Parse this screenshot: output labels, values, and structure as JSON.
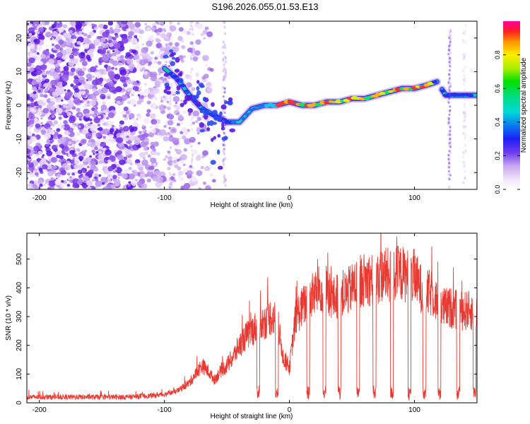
{
  "title": "S196.2026.055.01.53.E13",
  "colors": {
    "snr_line": "#e83a32",
    "axis": "#000000",
    "background": "#ffffff"
  },
  "chart_data": [
    {
      "type": "heatmap",
      "name": "spectrogram",
      "xlabel": "Height of straight line (km)",
      "ylabel": "Frequency (Hz)",
      "xlim": [
        -210,
        150
      ],
      "ylim": [
        -25,
        25
      ],
      "xticks": [
        -200,
        -100,
        0,
        100
      ],
      "xtick_labels": [
        "-200",
        "-100",
        "0",
        "100"
      ],
      "yticks": [
        -20,
        -10,
        0,
        10,
        20
      ],
      "ytick_labels": [
        "-20",
        "-10",
        "0",
        "10",
        "20"
      ],
      "ridge": {
        "x": [
          -100,
          -90,
          -80,
          -70,
          -60,
          -50,
          -40,
          -30,
          -20,
          -10,
          0,
          10,
          20,
          30,
          40,
          50,
          60,
          70,
          80,
          90,
          100,
          110,
          118,
          125,
          130,
          140,
          150
        ],
        "freq": [
          11,
          8,
          3,
          -1,
          -3,
          -5,
          -5,
          -1,
          0,
          0,
          1,
          0,
          0,
          1,
          1,
          2,
          2,
          3,
          4,
          5,
          5,
          6,
          7,
          3,
          3,
          3,
          3
        ]
      },
      "colorbar": {
        "label": "Normalized spectral amplitude",
        "range": [
          0.0,
          1.0
        ],
        "ticks": [
          0.0,
          0.2,
          0.4,
          0.6,
          0.8
        ],
        "tick_labels": [
          "0.0",
          "0.2",
          "0.4",
          "0.6",
          "0.8"
        ]
      }
    },
    {
      "type": "line",
      "name": "snr",
      "xlabel": "Height of straight line (km)",
      "ylabel": "SNR (10 * v/v)",
      "xlim": [
        -210,
        150
      ],
      "ylim": [
        0,
        590
      ],
      "xticks": [
        -200,
        -100,
        0,
        100
      ],
      "xtick_labels": [
        "-200",
        "-100",
        "0",
        "100"
      ],
      "yticks": [
        0,
        100,
        200,
        300,
        400,
        500
      ],
      "ytick_labels": [
        "0",
        "100",
        "200",
        "300",
        "400",
        "500"
      ],
      "series": [
        {
          "name": "SNR",
          "x": [
            -210,
            -190,
            -170,
            -150,
            -130,
            -110,
            -100,
            -90,
            -80,
            -75,
            -70,
            -65,
            -60,
            -55,
            -50,
            -45,
            -40,
            -35,
            -30,
            -25,
            -20,
            -15,
            -10,
            -5,
            0,
            5,
            10,
            15,
            20,
            25,
            30,
            35,
            40,
            45,
            50,
            55,
            60,
            65,
            70,
            75,
            80,
            85,
            90,
            95,
            100,
            105,
            110,
            115,
            120,
            125,
            130,
            135,
            140,
            145,
            150
          ],
          "y": [
            20,
            20,
            20,
            20,
            20,
            25,
            30,
            40,
            70,
            100,
            130,
            110,
            80,
            110,
            130,
            160,
            200,
            230,
            250,
            270,
            280,
            300,
            290,
            160,
            120,
            300,
            330,
            360,
            380,
            400,
            390,
            360,
            380,
            380,
            400,
            420,
            430,
            430,
            430,
            450,
            440,
            450,
            450,
            440,
            440,
            400,
            380,
            380,
            330,
            330,
            330,
            320,
            320,
            320,
            320
          ]
        }
      ],
      "dropouts_x": [
        -25,
        -10,
        15,
        28,
        40,
        55,
        68,
        82,
        96,
        108,
        120,
        135,
        148
      ]
    }
  ]
}
